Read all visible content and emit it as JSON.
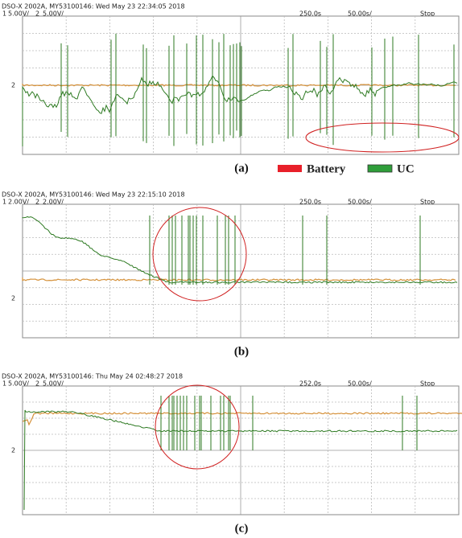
{
  "panels": [
    {
      "header": "DSO-X 2002A, MY53100146: Wed May 23 22:34:05 2018",
      "ch1": "1",
      "ch1_scale": "5.00V/",
      "ch2": "2",
      "ch2_scale": "5.00V/",
      "position": "250.0s",
      "timebase": "50.00s/",
      "status": "Stop",
      "label": "(a)"
    },
    {
      "header": "DSO-X 2002A, MY53100146: Wed May 23 22:15:10 2018",
      "ch1": "1",
      "ch1_scale": "2.00V/",
      "ch2": "2",
      "ch2_scale": "2.00V/",
      "position": "250.0s",
      "timebase": "50.00s/",
      "status": "Stop",
      "label": "(b)"
    },
    {
      "header": "DSO-X 2002A, MY53100146: Thu May 24 02:48:27 2018",
      "ch1": "1",
      "ch1_scale": "5.00V/",
      "ch2": "2",
      "ch2_scale": "5.00V/",
      "position": "252.0s",
      "timebase": "50.00s/",
      "status": "Stop",
      "label": "(c)"
    }
  ],
  "legend": [
    {
      "name": "Battery",
      "color": "#e8202a"
    },
    {
      "name": "UC",
      "color": "#2f9e3a"
    }
  ]
}
